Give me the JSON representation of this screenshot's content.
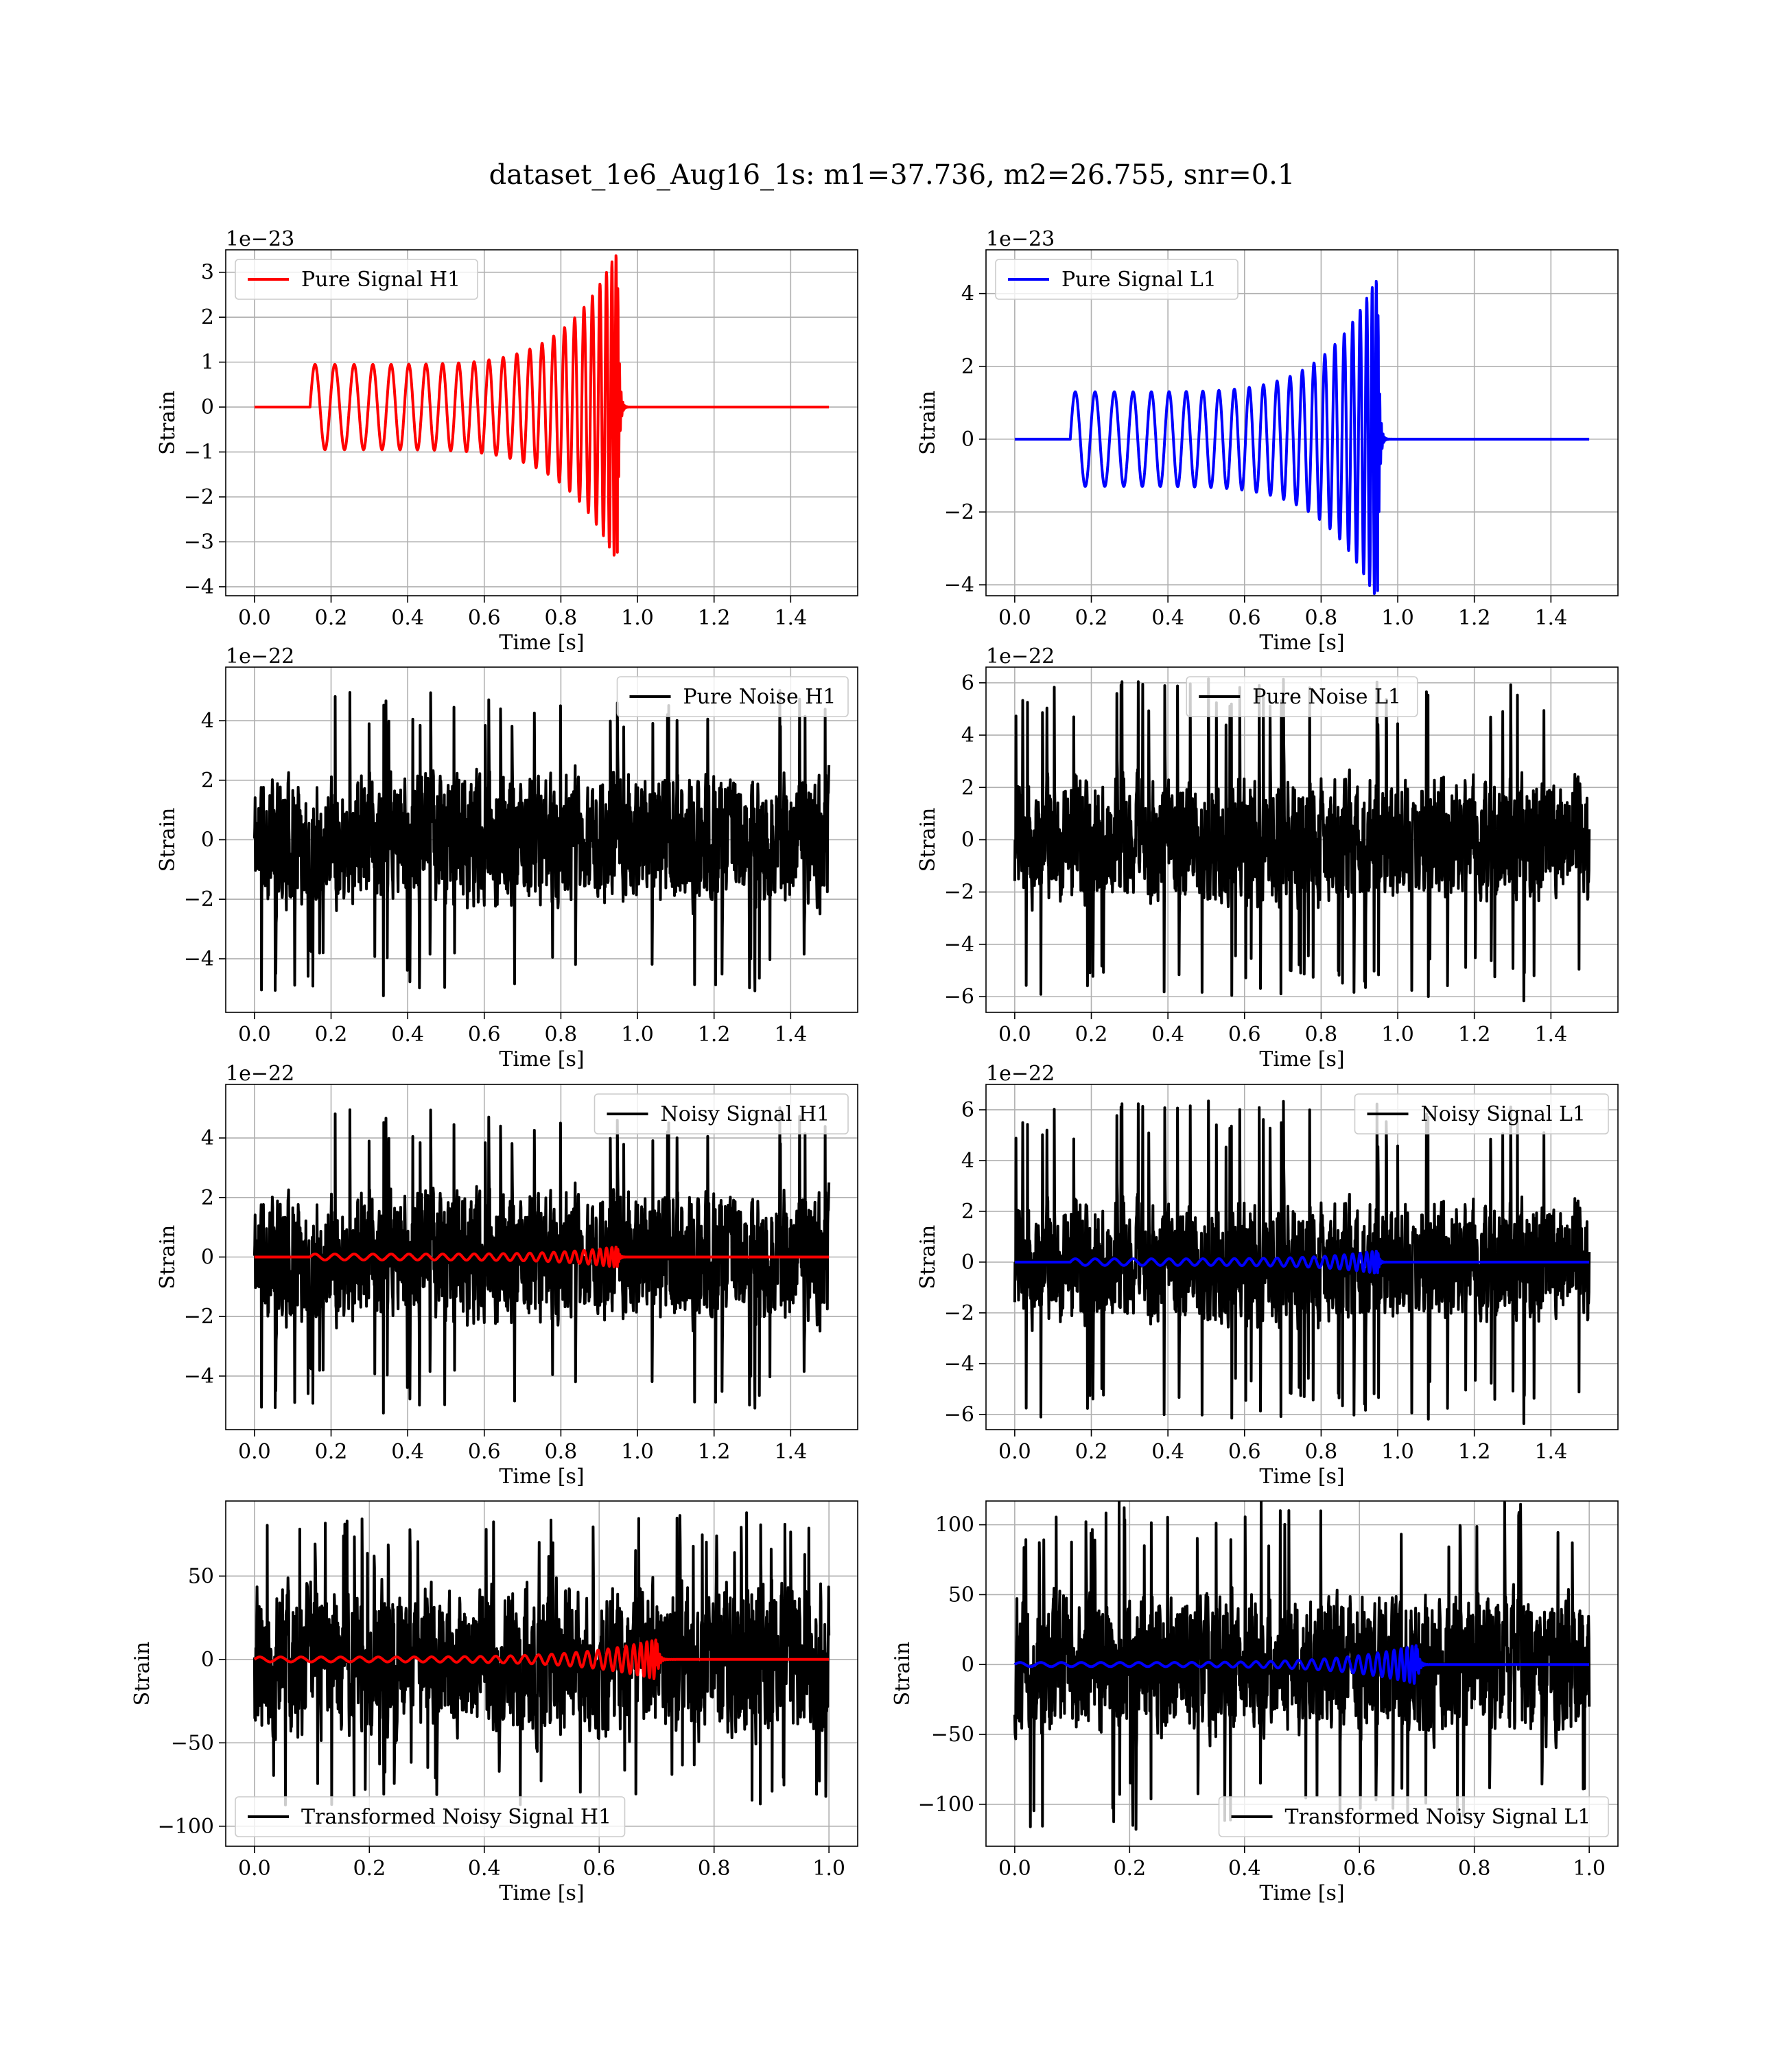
{
  "figure": {
    "title": "dataset_1e6_Aug16_1s: m1=37.736, m2=26.755, snr=0.1"
  },
  "chart_data": [
    {
      "id": "pure-signal-h1",
      "type": "line",
      "kind": "chirp",
      "color": "#ff0000",
      "legend": "Pure Signal H1",
      "legend_loc": "upper-left",
      "xlabel": "Time [s]",
      "ylabel": "Strain",
      "offset_label": "1e−23",
      "xlim": [
        -0.075,
        1.575
      ],
      "ylim": [
        -4.2,
        3.5
      ],
      "xticks": [
        0.0,
        0.2,
        0.4,
        0.6,
        0.8,
        1.0,
        1.2,
        1.4
      ],
      "xticklabels": [
        "0.0",
        "0.2",
        "0.4",
        "0.6",
        "0.8",
        "1.0",
        "1.2",
        "1.4"
      ],
      "yticks": [
        3,
        2,
        1,
        0,
        -1,
        -2,
        -3,
        -4
      ],
      "yticklabels": [
        "3",
        "2",
        "1",
        "0",
        "−1",
        "−2",
        "−3",
        "−4"
      ],
      "signal": {
        "start": 0.145,
        "merger": 0.948,
        "end": 1.5,
        "amp_start": 0.95,
        "amp_peak": 3.5,
        "f_start": 19,
        "chirp_time": 1.3,
        "ringdown": 0.004
      }
    },
    {
      "id": "pure-signal-l1",
      "type": "line",
      "kind": "chirp",
      "color": "#0000ff",
      "legend": "Pure Signal L1",
      "legend_loc": "upper-left",
      "xlabel": "Time [s]",
      "ylabel": "Strain",
      "offset_label": "1e−23",
      "xlim": [
        -0.075,
        1.575
      ],
      "ylim": [
        -4.3,
        5.2
      ],
      "xticks": [
        0.0,
        0.2,
        0.4,
        0.6,
        0.8,
        1.0,
        1.2,
        1.4
      ],
      "xticklabels": [
        "0.0",
        "0.2",
        "0.4",
        "0.6",
        "0.8",
        "1.0",
        "1.2",
        "1.4"
      ],
      "yticks": [
        4,
        2,
        0,
        -2,
        -4
      ],
      "yticklabels": [
        "4",
        "2",
        "0",
        "−2",
        "−4"
      ],
      "signal": {
        "start": 0.145,
        "merger": 0.948,
        "end": 1.5,
        "amp_start": 1.3,
        "amp_peak": 4.5,
        "f_start": 19,
        "chirp_time": 1.3,
        "ringdown": 0.004
      }
    },
    {
      "id": "pure-noise-h1",
      "type": "line",
      "kind": "noise",
      "color": "#000000",
      "legend": "Pure Noise H1",
      "legend_loc": "upper-right",
      "xlabel": "Time [s]",
      "ylabel": "Strain",
      "offset_label": "1e−22",
      "xlim": [
        -0.075,
        1.575
      ],
      "ylim": [
        -5.8,
        5.8
      ],
      "xticks": [
        0.0,
        0.2,
        0.4,
        0.6,
        0.8,
        1.0,
        1.2,
        1.4
      ],
      "xticklabels": [
        "0.0",
        "0.2",
        "0.4",
        "0.6",
        "0.8",
        "1.0",
        "1.2",
        "1.4"
      ],
      "yticks": [
        4,
        2,
        0,
        -2,
        -4
      ],
      "yticklabels": [
        "4",
        "2",
        "0",
        "−2",
        "−4"
      ],
      "noise": {
        "t0": 0.0,
        "t1": 1.5,
        "rms": 1.45,
        "peak": 5.3,
        "seed": 11
      }
    },
    {
      "id": "pure-noise-l1",
      "type": "line",
      "kind": "noise",
      "color": "#000000",
      "legend": "Pure Noise L1",
      "legend_loc": "upper-center",
      "xlabel": "Time [s]",
      "ylabel": "Strain",
      "offset_label": "1e−22",
      "xlim": [
        -0.075,
        1.575
      ],
      "ylim": [
        -6.6,
        6.6
      ],
      "xticks": [
        0.0,
        0.2,
        0.4,
        0.6,
        0.8,
        1.0,
        1.2,
        1.4
      ],
      "xticklabels": [
        "0.0",
        "0.2",
        "0.4",
        "0.6",
        "0.8",
        "1.0",
        "1.2",
        "1.4"
      ],
      "yticks": [
        6,
        4,
        2,
        0,
        -2,
        -4,
        -6
      ],
      "yticklabels": [
        "6",
        "4",
        "2",
        "0",
        "−2",
        "−4",
        "−6"
      ],
      "noise": {
        "t0": 0.0,
        "t1": 1.5,
        "rms": 1.55,
        "peak": 6.2,
        "seed": 23
      }
    },
    {
      "id": "noisy-signal-h1",
      "type": "line",
      "kind": "noisy",
      "color": "#000000",
      "signal_color": "#ff0000",
      "legend": "Noisy Signal H1",
      "legend_loc": "upper-right",
      "xlabel": "Time [s]",
      "ylabel": "Strain",
      "offset_label": "1e−22",
      "xlim": [
        -0.075,
        1.575
      ],
      "ylim": [
        -5.8,
        5.8
      ],
      "xticks": [
        0.0,
        0.2,
        0.4,
        0.6,
        0.8,
        1.0,
        1.2,
        1.4
      ],
      "xticklabels": [
        "0.0",
        "0.2",
        "0.4",
        "0.6",
        "0.8",
        "1.0",
        "1.2",
        "1.4"
      ],
      "yticks": [
        4,
        2,
        0,
        -2,
        -4
      ],
      "yticklabels": [
        "4",
        "2",
        "0",
        "−2",
        "−4"
      ],
      "noise": {
        "t0": 0.0,
        "t1": 1.5,
        "rms": 1.45,
        "peak": 5.3,
        "seed": 11
      },
      "signal": {
        "start": 0.145,
        "merger": 0.948,
        "end": 1.5,
        "amp_start": 0.1,
        "amp_peak": 0.35,
        "f_start": 19,
        "chirp_time": 1.3,
        "ringdown": 0.004
      }
    },
    {
      "id": "noisy-signal-l1",
      "type": "line",
      "kind": "noisy",
      "color": "#000000",
      "signal_color": "#0000ff",
      "legend": "Noisy Signal L1",
      "legend_loc": "upper-right",
      "xlabel": "Time [s]",
      "ylabel": "Strain",
      "offset_label": "1e−22",
      "xlim": [
        -0.075,
        1.575
      ],
      "ylim": [
        -6.6,
        7.0
      ],
      "xticks": [
        0.0,
        0.2,
        0.4,
        0.6,
        0.8,
        1.0,
        1.2,
        1.4
      ],
      "xticklabels": [
        "0.0",
        "0.2",
        "0.4",
        "0.6",
        "0.8",
        "1.0",
        "1.2",
        "1.4"
      ],
      "yticks": [
        6,
        4,
        2,
        0,
        -2,
        -4,
        -6
      ],
      "yticklabels": [
        "6",
        "4",
        "2",
        "0",
        "−2",
        "−4",
        "−6"
      ],
      "noise": {
        "t0": 0.0,
        "t1": 1.5,
        "rms": 1.55,
        "peak": 6.4,
        "seed": 23
      },
      "signal": {
        "start": 0.145,
        "merger": 0.948,
        "end": 1.5,
        "amp_start": 0.13,
        "amp_peak": 0.45,
        "f_start": 19,
        "chirp_time": 1.3,
        "ringdown": 0.004
      }
    },
    {
      "id": "transformed-noisy-signal-h1",
      "type": "line",
      "kind": "noisy",
      "color": "#000000",
      "signal_color": "#ff0000",
      "legend": "Transformed Noisy Signal H1",
      "legend_loc": "lower-left",
      "xlabel": "Time [s]",
      "ylabel": "Strain",
      "offset_label": "",
      "xlim": [
        -0.05,
        1.05
      ],
      "ylim": [
        -112,
        95
      ],
      "xticks": [
        0.0,
        0.2,
        0.4,
        0.6,
        0.8,
        1.0
      ],
      "xticklabels": [
        "0.0",
        "0.2",
        "0.4",
        "0.6",
        "0.8",
        "1.0"
      ],
      "yticks": [
        50,
        0,
        -50,
        -100
      ],
      "yticklabels": [
        "50",
        "0",
        "−50",
        "−100"
      ],
      "noise": {
        "t0": 0.0,
        "t1": 1.0,
        "rms": 30,
        "peak": 88,
        "seed": 37
      },
      "signal": {
        "start": 0.0,
        "merger": 0.7,
        "end": 1.0,
        "amp_start": 1.5,
        "amp_peak": 12,
        "f_start": 22,
        "chirp_time": 1.4,
        "ringdown": 0.004
      }
    },
    {
      "id": "transformed-noisy-signal-l1",
      "type": "line",
      "kind": "noisy",
      "color": "#000000",
      "signal_color": "#0000ff",
      "legend": "Transformed Noisy Signal L1",
      "legend_loc": "lower-right",
      "xlabel": "Time [s]",
      "ylabel": "Strain",
      "offset_label": "",
      "xlim": [
        -0.05,
        1.05
      ],
      "ylim": [
        -130,
        117
      ],
      "xticks": [
        0.0,
        0.2,
        0.4,
        0.6,
        0.8,
        1.0
      ],
      "xticklabels": [
        "0.0",
        "0.2",
        "0.4",
        "0.6",
        "0.8",
        "1.0"
      ],
      "yticks": [
        100,
        50,
        0,
        -50,
        -100
      ],
      "yticklabels": [
        "100",
        "50",
        "0",
        "−50",
        "−100"
      ],
      "noise": {
        "t0": 0.0,
        "t1": 1.0,
        "rms": 33,
        "peak": 118,
        "seed": 53
      },
      "signal": {
        "start": 0.0,
        "merger": 0.7,
        "end": 1.0,
        "amp_start": 1.5,
        "amp_peak": 14,
        "f_start": 22,
        "chirp_time": 1.4,
        "ringdown": 0.004
      }
    }
  ]
}
